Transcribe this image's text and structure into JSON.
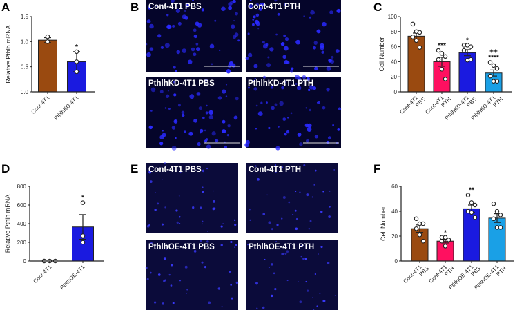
{
  "panels": {
    "A": "A",
    "B": "B",
    "C": "C",
    "D": "D",
    "E": "E",
    "F": "F"
  },
  "chart_data": [
    {
      "panel": "A",
      "type": "bar",
      "ylabel": "Relative Pthlh mRNA",
      "ylim": [
        0,
        1.5
      ],
      "yticks": [
        "0.0",
        "0.5",
        "1.0",
        "1.5"
      ],
      "ytick_values": [
        0,
        0.5,
        1.0,
        1.5
      ],
      "categories": [
        [
          "Cont-4T1"
        ],
        [
          "PthlhKD-4T1"
        ]
      ],
      "values": [
        1.03,
        0.6
      ],
      "errors": [
        0.05,
        0.2
      ],
      "points": [
        [
          1.1,
          1.0,
          1.0
        ],
        [
          0.8,
          0.6,
          0.4
        ]
      ],
      "significance": [
        [
          ""
        ],
        [
          "*"
        ]
      ],
      "colors": [
        "#9a4a10",
        "#1a1ae0"
      ]
    },
    {
      "panel": "C",
      "type": "bar",
      "ylabel": "Cell Number",
      "ylim": [
        0,
        100
      ],
      "yticks": [
        "0",
        "20",
        "40",
        "60",
        "80",
        "100"
      ],
      "ytick_values": [
        0,
        20,
        40,
        60,
        80,
        100
      ],
      "categories": [
        [
          "Cont-4T1",
          "PBS"
        ],
        [
          "Cont-4T1",
          "PTH"
        ],
        [
          "PthlhKD-4T1",
          "PBS"
        ],
        [
          "PthlhKD-4T1",
          "PTH"
        ]
      ],
      "values": [
        74,
        40,
        52,
        25
      ],
      "errors": [
        4,
        6,
        4,
        4
      ],
      "points": [
        [
          90,
          80,
          79,
          73,
          68,
          59
        ],
        [
          55,
          51,
          47,
          43,
          30,
          17
        ],
        [
          62,
          62,
          60,
          55,
          42,
          43
        ],
        [
          39,
          35,
          31,
          21,
          14,
          14
        ]
      ],
      "significance": [
        [
          ""
        ],
        [
          "***"
        ],
        [
          "*"
        ],
        [
          "++",
          "****"
        ]
      ],
      "colors": [
        "#9a4a10",
        "#ff1060",
        "#1a1ae0",
        "#1aa0e6"
      ]
    },
    {
      "panel": "D",
      "type": "bar",
      "ylabel": "Relative Pthlh  mRNA",
      "ylim": [
        0,
        800
      ],
      "yticks": [
        "0",
        "200",
        "400",
        "600",
        "800"
      ],
      "ytick_values": [
        0,
        200,
        400,
        600,
        800
      ],
      "categories": [
        [
          "Cont-4T1"
        ],
        [
          "PthlhOE-4T1"
        ]
      ],
      "values": [
        1,
        365
      ],
      "errors": [
        0,
        132
      ],
      "points": [
        [
          0,
          0,
          0
        ],
        [
          625,
          270,
          200
        ]
      ],
      "significance": [
        [
          ""
        ],
        [
          "*"
        ]
      ],
      "colors": [
        "#9a4a10",
        "#1a1ae0"
      ]
    },
    {
      "panel": "F",
      "type": "bar",
      "ylabel": "Cell Number",
      "ylim": [
        0,
        60
      ],
      "yticks": [
        "0",
        "20",
        "40",
        "60"
      ],
      "ytick_values": [
        0,
        20,
        40,
        60
      ],
      "categories": [
        [
          "Cont-4T1",
          "PBS"
        ],
        [
          "Cont-4T1",
          "PTH"
        ],
        [
          "PthlhOE-4T1",
          "PBS"
        ],
        [
          "PthlhOE-4T1",
          "PTH"
        ]
      ],
      "values": [
        26,
        16,
        42,
        34.5
      ],
      "errors": [
        3,
        1.5,
        3,
        3.5
      ],
      "points": [
        [
          34,
          30,
          30,
          26,
          21,
          16
        ],
        [
          19,
          19,
          17,
          16,
          12,
          17
        ],
        [
          53,
          47,
          45,
          40,
          39,
          35
        ],
        [
          46,
          40,
          37,
          34,
          27,
          27
        ]
      ],
      "significance": [
        [
          ""
        ],
        [
          "*"
        ],
        [
          "**"
        ],
        [
          ""
        ]
      ],
      "colors": [
        "#9a4a10",
        "#ff1060",
        "#1a1ae0",
        "#1aa0e6"
      ]
    }
  ],
  "images": {
    "B": [
      "Cont-4T1 PBS",
      "Cont-4T1 PTH",
      "PthlhKD-4T1 PBS",
      "PthlhKD-4T1 PTH"
    ],
    "E": [
      "Cont-4T1 PBS",
      "Cont-4T1 PTH",
      "PthlhOE-4T1 PBS",
      "PthlhOE-4T1 PTH"
    ]
  }
}
